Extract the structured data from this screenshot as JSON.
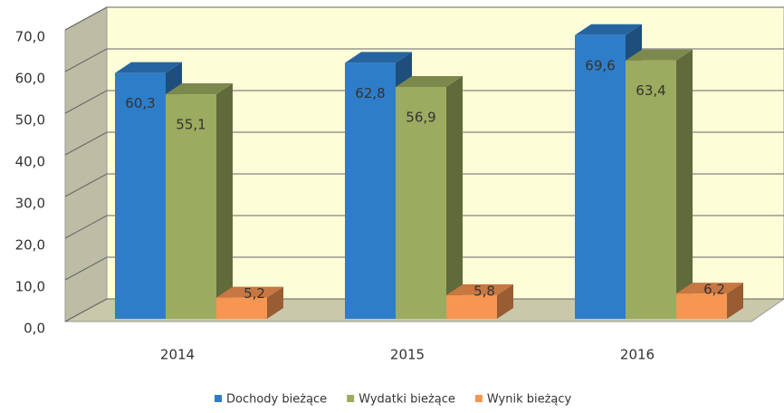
{
  "chart_data": {
    "type": "bar3d",
    "categories": [
      "2014",
      "2015",
      "2016"
    ],
    "series": [
      {
        "name": "Dochody bieżące",
        "color": "#2e7dc8",
        "values": [
          60.3,
          62.8,
          69.6
        ],
        "value_labels": [
          "60,3",
          "62,8",
          "69,6"
        ]
      },
      {
        "name": "Wydatki bieżące",
        "color": "#9bab5f",
        "values": [
          55.1,
          56.9,
          63.4
        ],
        "value_labels": [
          "55,1",
          "56,9",
          "63,4"
        ]
      },
      {
        "name": "Wynik bieżący",
        "color": "#f79552",
        "values": [
          5.2,
          5.8,
          6.2
        ],
        "value_labels": [
          "5,2",
          "5,8",
          "6,2"
        ]
      }
    ],
    "ylim": [
      0,
      70
    ],
    "yticks": [
      {
        "value": 0,
        "label": "0,0"
      },
      {
        "value": 10,
        "label": "10,0"
      },
      {
        "value": 20,
        "label": "20,0"
      },
      {
        "value": 30,
        "label": "30,0"
      },
      {
        "value": 40,
        "label": "40,0"
      },
      {
        "value": 50,
        "label": "50,0"
      },
      {
        "value": 60,
        "label": "60,0"
      },
      {
        "value": 70,
        "label": "70,0"
      }
    ],
    "grid": true,
    "legend": "bottom"
  }
}
